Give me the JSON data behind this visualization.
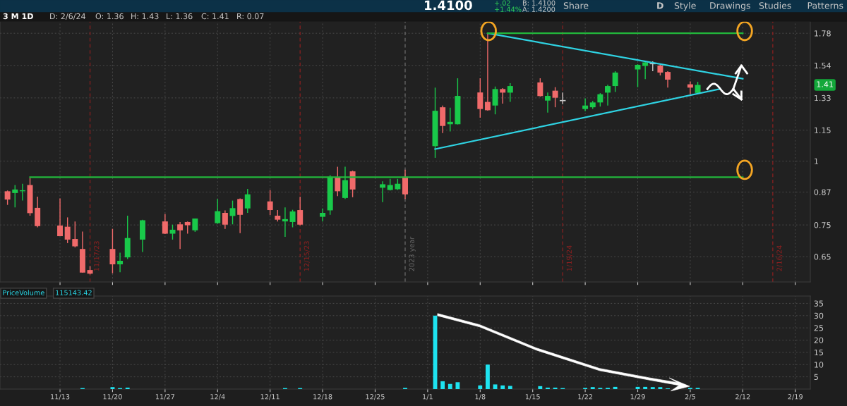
{
  "chart_data": [
    {
      "type": "candlestick",
      "title": "3 M 1D",
      "x": [
        "2023-11-06",
        "2023-11-07",
        "2023-11-08",
        "2023-11-09",
        "2023-11-10",
        "2023-11-13",
        "2023-11-14",
        "2023-11-15",
        "2023-11-16",
        "2023-11-17",
        "2023-11-20",
        "2023-11-21",
        "2023-11-22",
        "2023-11-24",
        "2023-11-27",
        "2023-11-28",
        "2023-11-29",
        "2023-11-30",
        "2023-12-01",
        "2023-12-04",
        "2023-12-05",
        "2023-12-06",
        "2023-12-07",
        "2023-12-08",
        "2023-12-11",
        "2023-12-12",
        "2023-12-13",
        "2023-12-14",
        "2023-12-15",
        "2023-12-18",
        "2023-12-19",
        "2023-12-20",
        "2023-12-21",
        "2023-12-22",
        "2023-12-26",
        "2023-12-27",
        "2023-12-28",
        "2023-12-29",
        "2024-01-02",
        "2024-01-03",
        "2024-01-04",
        "2024-01-05",
        "2024-01-08",
        "2024-01-09",
        "2024-01-10",
        "2024-01-11",
        "2024-01-12",
        "2024-01-16",
        "2024-01-17",
        "2024-01-18",
        "2024-01-19",
        "2024-01-22",
        "2024-01-23",
        "2024-01-24",
        "2024-01-25",
        "2024-01-26",
        "2024-01-29",
        "2024-01-30",
        "2024-01-31",
        "2024-02-01",
        "2024-02-02",
        "2024-02-05",
        "2024-02-06"
      ],
      "ohlc": [
        [
          0.873,
          0.876,
          0.821,
          0.841
        ],
        [
          0.866,
          0.898,
          0.812,
          0.88
        ],
        [
          0.873,
          0.903,
          0.837,
          0.877
        ],
        [
          0.898,
          0.927,
          0.782,
          0.791
        ],
        [
          0.81,
          0.852,
          0.742,
          0.746
        ],
        [
          0.748,
          0.845,
          0.713,
          0.713
        ],
        [
          0.744,
          0.776,
          0.691,
          0.702
        ],
        [
          0.704,
          0.762,
          0.678,
          0.681
        ],
        [
          0.673,
          0.728,
          0.605,
          0.605
        ],
        [
          0.612,
          0.623,
          0.6,
          0.602
        ],
        [
          0.673,
          0.737,
          0.603,
          0.628
        ],
        [
          0.628,
          0.662,
          0.606,
          0.638
        ],
        [
          0.648,
          0.782,
          0.643,
          0.707
        ],
        [
          0.702,
          0.768,
          0.664,
          0.766
        ],
        [
          0.762,
          0.788,
          0.72,
          0.721
        ],
        [
          0.721,
          0.751,
          0.702,
          0.734
        ],
        [
          0.752,
          0.76,
          0.673,
          0.732
        ],
        [
          0.76,
          0.762,
          0.721,
          0.749
        ],
        [
          0.732,
          0.772,
          0.727,
          0.772
        ],
        [
          0.756,
          0.843,
          0.754,
          0.798
        ],
        [
          0.792,
          0.801,
          0.737,
          0.751
        ],
        [
          0.781,
          0.837,
          0.752,
          0.809
        ],
        [
          0.843,
          0.845,
          0.723,
          0.785
        ],
        [
          0.808,
          0.882,
          0.792,
          0.861
        ],
        [
          0.834,
          0.878,
          0.784,
          0.802
        ],
        [
          0.782,
          0.802,
          0.762,
          0.768
        ],
        [
          0.762,
          0.812,
          0.711,
          0.77
        ],
        [
          0.76,
          0.803,
          0.742,
          0.797
        ],
        [
          0.802,
          0.852,
          0.749,
          0.751
        ],
        [
          0.778,
          0.808,
          0.762,
          0.792
        ],
        [
          0.801,
          0.939,
          0.785,
          0.932
        ],
        [
          0.93,
          0.975,
          0.854,
          0.873
        ],
        [
          0.847,
          0.975,
          0.843,
          0.918
        ],
        [
          0.955,
          0.958,
          0.85,
          0.88
        ],
        [
          0.887,
          0.913,
          0.831,
          0.901
        ],
        [
          0.878,
          0.923,
          0.876,
          0.898
        ],
        [
          0.881,
          0.923,
          0.878,
          0.903
        ],
        [
          0.932,
          0.962,
          0.843,
          0.861
        ],
        [
          1.07,
          1.393,
          1.015,
          1.255
        ],
        [
          1.275,
          1.285,
          1.135,
          1.172
        ],
        [
          1.181,
          1.273,
          1.143,
          1.194
        ],
        [
          1.181,
          1.453,
          1.18,
          1.342
        ],
        [
          1.363,
          1.453,
          1.216,
          1.265
        ],
        [
          1.306,
          1.78,
          1.256,
          1.258
        ],
        [
          1.285,
          1.4,
          1.235,
          1.384
        ],
        [
          1.384,
          1.39,
          1.296,
          1.362
        ],
        [
          1.362,
          1.421,
          1.306,
          1.403
        ],
        [
          1.426,
          1.453,
          1.338,
          1.341
        ],
        [
          1.314,
          1.363,
          1.245,
          1.342
        ],
        [
          1.374,
          1.396,
          1.275,
          1.331
        ],
        [
          1.314,
          1.363,
          1.293,
          1.314
        ],
        [
          1.265,
          1.327,
          1.253,
          1.285
        ],
        [
          1.275,
          1.312,
          1.266,
          1.303
        ],
        [
          1.303,
          1.359,
          1.279,
          1.352
        ],
        [
          1.362,
          1.411,
          1.285,
          1.403
        ],
        [
          1.403,
          1.5,
          1.366,
          1.491
        ],
        [
          1.512,
          1.548,
          1.396,
          1.544
        ],
        [
          1.536,
          1.565,
          1.448,
          1.561
        ],
        [
          1.552,
          1.569,
          1.5,
          1.552
        ],
        [
          1.539,
          1.545,
          1.472,
          1.491
        ],
        [
          1.495,
          1.5,
          1.393,
          1.444
        ],
        [
          1.414,
          1.433,
          1.352,
          1.393
        ],
        [
          1.36,
          1.43,
          1.36,
          1.41
        ]
      ],
      "colors": [
        "#f06a6a",
        "#19c94a",
        "#19c94a",
        "#f06a6a",
        "#f06a6a",
        "#f06a6a",
        "#f06a6a",
        "#f06a6a",
        "#f06a6a",
        "#f06a6a",
        "#f06a6a",
        "#19c94a",
        "#19c94a",
        "#19c94a",
        "#f06a6a",
        "#19c94a",
        "#f06a6a",
        "#f06a6a",
        "#19c94a",
        "#19c94a",
        "#f06a6a",
        "#19c94a",
        "#f06a6a",
        "#19c94a",
        "#f06a6a",
        "#f06a6a",
        "#19c94a",
        "#19c94a",
        "#f06a6a",
        "#19c94a",
        "#19c94a",
        "#f06a6a",
        "#19c94a",
        "#f06a6a",
        "#19c94a",
        "#19c94a",
        "#19c94a",
        "#f06a6a",
        "#19c94a",
        "#f06a6a",
        "#19c94a",
        "#19c94a",
        "#f06a6a",
        "#f06a6a",
        "#19c94a",
        "#f06a6a",
        "#19c94a",
        "#f06a6a",
        "#19c94a",
        "#f06a6a",
        "#c8c8c8",
        "#19c94a",
        "#19c94a",
        "#19c94a",
        "#19c94a",
        "#19c94a",
        "#19c94a",
        "#19c94a",
        "#c8c8c8",
        "#f06a6a",
        "#f06a6a",
        "#f06a6a",
        "#19c94a"
      ],
      "series": [
        {
          "type": "line",
          "color": "#2fd3e3",
          "x": [
            "2024-01-09",
            "2024-02-12"
          ],
          "values": [
            1.78,
            1.45
          ]
        },
        {
          "type": "line",
          "color": "#2fd3e3",
          "x": [
            "2024-01-02",
            "2024-02-09"
          ],
          "values": [
            1.056,
            1.385
          ]
        },
        {
          "type": "line",
          "color": "#22b83c",
          "x": [
            "2024-01-09",
            "2024-02-12"
          ],
          "values": [
            1.78,
            1.78
          ]
        },
        {
          "type": "line",
          "color": "#22b83c",
          "x": [
            "2023-11-09",
            "2024-02-12"
          ],
          "values": [
            0.93,
            0.93
          ]
        }
      ],
      "ref_lines": [
        {
          "axis": "x",
          "value": "2023-11-17",
          "label": "11/17/23",
          "color": "#8a2020",
          "line_style": "dashed"
        },
        {
          "axis": "x",
          "value": "2023-12-15",
          "label": "12/15/23",
          "color": "#8a2020",
          "line_style": "dashed"
        },
        {
          "axis": "x",
          "value": "2023-12-29",
          "label": "2023 year",
          "color": "#6a6a6a",
          "line_style": "dashed"
        },
        {
          "axis": "x",
          "value": "2024-01-19",
          "label": "1/19/24",
          "color": "#8a2020",
          "line_style": "dashed"
        },
        {
          "axis": "x",
          "value": "2024-02-16",
          "label": "2/16/24",
          "color": "#8a2020",
          "line_style": "dashed"
        }
      ],
      "annotations": [
        "1.4100",
        "+.02",
        "+1.44%",
        "B: 1.4100",
        "A: 1.4200",
        "D: 2/6/24",
        "O: 1.36",
        "H: 1.43",
        "L: 1.36",
        "C: 1.41",
        "R: 0.07",
        "Share",
        "D",
        "Style",
        "Drawings",
        "Studies",
        "Patterns",
        "1.41"
      ],
      "log": true,
      "ylim": [
        0.58,
        1.88
      ],
      "yticks": [
        0.65,
        0.75,
        0.87,
        1,
        1.15,
        1.33,
        1.54,
        1.78
      ],
      "xlim": [
        "2023-11-05",
        "2024-02-21"
      ],
      "xticks": [
        {
          "value": "2023-11-13",
          "label": null
        },
        {
          "value": "2023-11-20",
          "label": null
        },
        {
          "value": "2023-11-27",
          "label": null
        },
        {
          "value": "2023-12-04",
          "label": null
        },
        {
          "value": "2023-12-11",
          "label": null
        },
        {
          "value": "2023-12-18",
          "label": null
        },
        {
          "value": "2023-12-25",
          "label": null
        },
        {
          "value": "2024-01-01",
          "label": null
        },
        {
          "value": "2024-01-08",
          "label": null
        },
        {
          "value": "2024-01-15",
          "label": null
        },
        {
          "value": "2024-01-22",
          "label": null
        },
        {
          "value": "2024-01-29",
          "label": null
        },
        {
          "value": "2024-02-05",
          "label": null
        },
        {
          "value": "2024-02-12",
          "label": null
        },
        {
          "value": "2024-02-19",
          "label": null
        }
      ],
      "tick_labels": "y",
      "grid": true
    },
    {
      "type": "bar",
      "title": "PriceVolume",
      "annotations": [
        "115143.42"
      ],
      "color": "#1ee3f0",
      "x": [
        "2023-11-06",
        "2023-11-07",
        "2023-11-08",
        "2023-11-09",
        "2023-11-10",
        "2023-11-13",
        "2023-11-14",
        "2023-11-15",
        "2023-11-16",
        "2023-11-17",
        "2023-11-20",
        "2023-11-21",
        "2023-11-22",
        "2023-11-24",
        "2023-11-27",
        "2023-11-28",
        "2023-11-29",
        "2023-11-30",
        "2023-12-01",
        "2023-12-04",
        "2023-12-05",
        "2023-12-06",
        "2023-12-07",
        "2023-12-08",
        "2023-12-11",
        "2023-12-12",
        "2023-12-13",
        "2023-12-14",
        "2023-12-15",
        "2023-12-18",
        "2023-12-19",
        "2023-12-20",
        "2023-12-21",
        "2023-12-22",
        "2023-12-26",
        "2023-12-27",
        "2023-12-28",
        "2023-12-29",
        "2024-01-02",
        "2024-01-03",
        "2024-01-04",
        "2024-01-05",
        "2024-01-08",
        "2024-01-09",
        "2024-01-10",
        "2024-01-11",
        "2024-01-12",
        "2024-01-16",
        "2024-01-17",
        "2024-01-18",
        "2024-01-19",
        "2024-01-22",
        "2024-01-23",
        "2024-01-24",
        "2024-01-25",
        "2024-01-26",
        "2024-01-29",
        "2024-01-30",
        "2024-01-31",
        "2024-02-01",
        "2024-02-02",
        "2024-02-05",
        "2024-02-06"
      ],
      "values": [
        0,
        0,
        0,
        0,
        0,
        0,
        0,
        0,
        0.4,
        0,
        0.8,
        0.4,
        0.6,
        0,
        0,
        0,
        0,
        0,
        0,
        0,
        0,
        0,
        0,
        0,
        0,
        0,
        0.4,
        0,
        0.4,
        0,
        0,
        0,
        0,
        0,
        0,
        0,
        0,
        0.5,
        30,
        3.2,
        2.1,
        2.8,
        1.5,
        10,
        1.9,
        1.5,
        1.3,
        1.2,
        0.6,
        0.6,
        0.4,
        0.5,
        0.8,
        0.5,
        0.5,
        0.9,
        0.9,
        0.9,
        0.8,
        0.8,
        0.3,
        0.5,
        0.5
      ],
      "ylim": [
        0,
        38
      ],
      "yticks": [
        5,
        10,
        15,
        20,
        25,
        30,
        35
      ],
      "xlim": [
        "2023-11-05",
        "2024-02-21"
      ],
      "xticks": [
        {
          "value": "2023-11-13",
          "label": "11/13"
        },
        {
          "value": "2023-11-20",
          "label": "11/20"
        },
        {
          "value": "2023-11-27",
          "label": "11/27"
        },
        {
          "value": "2023-12-04",
          "label": "12/4"
        },
        {
          "value": "2023-12-11",
          "label": "12/11"
        },
        {
          "value": "2023-12-18",
          "label": "12/18"
        },
        {
          "value": "2023-12-25",
          "label": "12/25"
        },
        {
          "value": "2024-01-01",
          "label": "1/1"
        },
        {
          "value": "2024-01-08",
          "label": "1/8"
        },
        {
          "value": "2024-01-15",
          "label": "1/15"
        },
        {
          "value": "2024-01-22",
          "label": "1/22"
        },
        {
          "value": "2024-01-29",
          "label": "1/29"
        },
        {
          "value": "2024-02-05",
          "label": "2/5"
        },
        {
          "value": "2024-02-12",
          "label": "2/12"
        },
        {
          "value": "2024-02-19",
          "label": "2/19"
        }
      ],
      "grid": true
    }
  ]
}
